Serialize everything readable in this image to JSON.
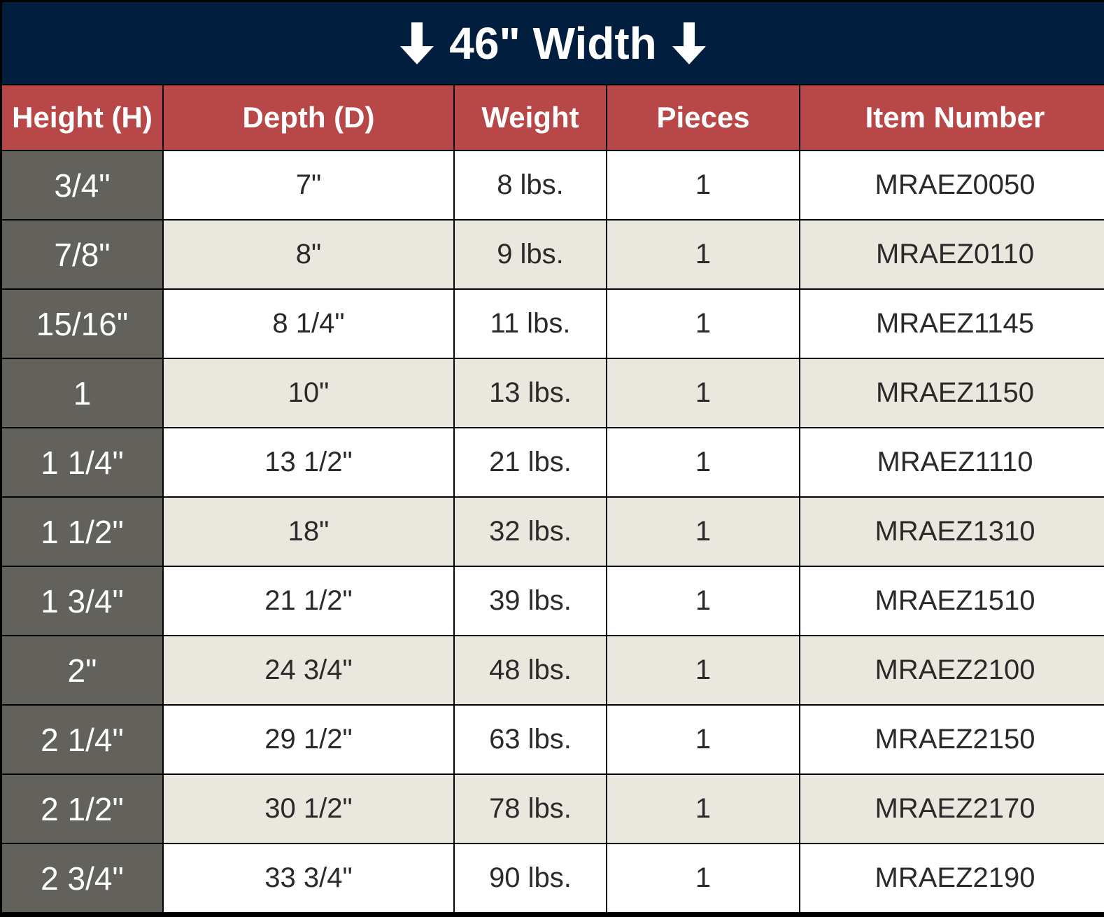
{
  "title": "46\" Width",
  "icons": {
    "left": "arrow-down-icon",
    "right": "arrow-down-icon"
  },
  "colors": {
    "banner": "#021e3e",
    "header": "#b84848",
    "height_column": "#62615b",
    "row_alt": "#eae7de"
  },
  "columns": [
    "Height (H)",
    "Depth (D)",
    "Weight",
    "Pieces",
    "Item Number"
  ],
  "rows": [
    [
      "3/4\"",
      "7\"",
      "8 lbs.",
      "1",
      "MRAEZ0050"
    ],
    [
      "7/8\"",
      "8\"",
      "9 lbs.",
      "1",
      "MRAEZ0110"
    ],
    [
      "15/16\"",
      "8 1/4\"",
      "11 lbs.",
      "1",
      "MRAEZ1145"
    ],
    [
      "1",
      "10\"",
      "13 lbs.",
      "1",
      "MRAEZ1150"
    ],
    [
      "1 1/4\"",
      "13 1/2\"",
      "21 lbs.",
      "1",
      "MRAEZ1110"
    ],
    [
      "1 1/2\"",
      "18\"",
      "32 lbs.",
      "1",
      "MRAEZ1310"
    ],
    [
      "1 3/4\"",
      "21 1/2\"",
      "39 lbs.",
      "1",
      "MRAEZ1510"
    ],
    [
      "2\"",
      "24 3/4\"",
      "48 lbs.",
      "1",
      "MRAEZ2100"
    ],
    [
      "2 1/4\"",
      "29 1/2\"",
      "63 lbs.",
      "1",
      "MRAEZ2150"
    ],
    [
      "2 1/2\"",
      "30 1/2\"",
      "78 lbs.",
      "1",
      "MRAEZ2170"
    ],
    [
      "2 3/4\"",
      "33 3/4\"",
      "90 lbs.",
      "1",
      "MRAEZ2190"
    ]
  ]
}
